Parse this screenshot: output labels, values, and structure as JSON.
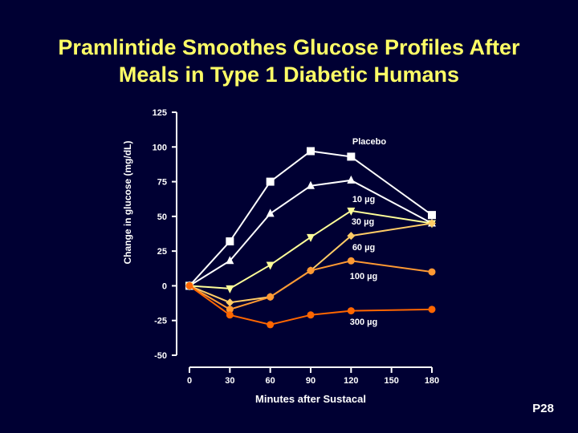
{
  "slide": {
    "title_line1": "Pramlintide Smoothes Glucose Profiles After",
    "title_line2": "Meals in Type 1 Diabetic Humans",
    "code": "P28"
  },
  "colors": {
    "background": "#000033",
    "title": "#FFFF66",
    "axis": "#FFFFFF"
  },
  "chart_data": {
    "type": "line",
    "title": "",
    "xlabel": "Minutes after Sustacal",
    "ylabel": "Change in glucose (mg/dL)",
    "xlim": [
      0,
      180
    ],
    "ylim": [
      -50,
      125
    ],
    "xticks": [
      0,
      30,
      60,
      90,
      120,
      150,
      180
    ],
    "yticks": [
      -50,
      -25,
      0,
      25,
      50,
      75,
      100,
      125
    ],
    "grid": false,
    "legend": "inline labels",
    "series": [
      {
        "name": "Placebo",
        "marker": "square",
        "color": "#FFFFFF",
        "x": [
          0,
          30,
          60,
          90,
          120,
          180
        ],
        "y": [
          0,
          32,
          75,
          97,
          93,
          51
        ]
      },
      {
        "name": "10 µg",
        "marker": "triangle-up",
        "color": "#FFFFFF",
        "x": [
          0,
          30,
          60,
          90,
          120,
          180
        ],
        "y": [
          0,
          18,
          52,
          72,
          76,
          45
        ]
      },
      {
        "name": "30 µg",
        "marker": "triangle-down",
        "color": "#FFFF99",
        "x": [
          0,
          30,
          60,
          90,
          120,
          180
        ],
        "y": [
          0,
          -2,
          15,
          35,
          54,
          45
        ]
      },
      {
        "name": "60 µg",
        "marker": "diamond",
        "color": "#FFCC66",
        "x": [
          0,
          30,
          60,
          90,
          120,
          180
        ],
        "y": [
          0,
          -12,
          -8,
          11,
          36,
          45
        ]
      },
      {
        "name": "100 µg",
        "marker": "circle",
        "color": "#FF9933",
        "x": [
          0,
          30,
          60,
          90,
          120,
          180
        ],
        "y": [
          0,
          -17,
          -8,
          11,
          18,
          10
        ]
      },
      {
        "name": "300 µg",
        "marker": "circle",
        "color": "#FF6600",
        "x": [
          0,
          30,
          60,
          90,
          120,
          180
        ],
        "y": [
          0,
          -21,
          -28,
          -21,
          -18,
          -17
        ]
      }
    ]
  }
}
